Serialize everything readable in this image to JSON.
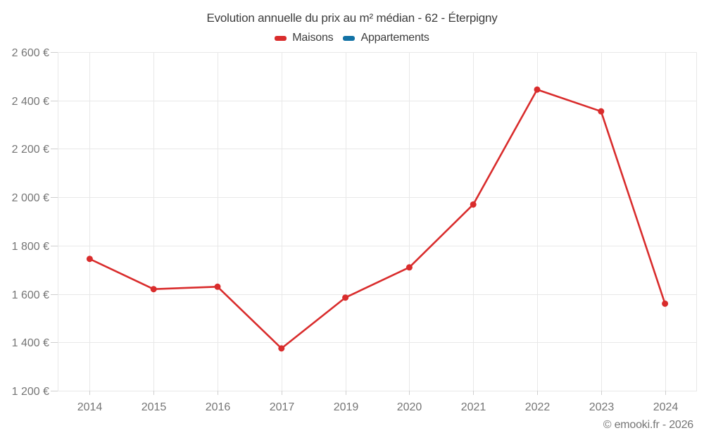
{
  "header": {
    "title": "Evolution annuelle du prix au m² médian - 62 - Éterpigny"
  },
  "legend": {
    "items": [
      {
        "label": "Maisons",
        "color": "#d92c2c"
      },
      {
        "label": "Appartements",
        "color": "#1272a5"
      }
    ]
  },
  "footer": {
    "copyright": "© emooki.fr - 2026"
  },
  "colors": {
    "maisons": "#d92c2c",
    "appartements": "#1272a5",
    "gridline": "#e8e8e8",
    "tick": "#cfcfcf",
    "axis_label": "#757575",
    "title_text": "#3d3d3d"
  },
  "chart_data": {
    "type": "line",
    "title": "Evolution annuelle du prix au m² médian - 62 - Éterpigny",
    "xlabel": "",
    "ylabel": "",
    "categories": [
      "2014",
      "2015",
      "2016",
      "2017",
      "2019",
      "2020",
      "2021",
      "2022",
      "2023",
      "2024"
    ],
    "series": [
      {
        "name": "Maisons",
        "color": "#d92c2c",
        "values": [
          1745,
          1620,
          1630,
          1375,
          1585,
          1710,
          1970,
          2445,
          2355,
          1560
        ]
      },
      {
        "name": "Appartements",
        "color": "#1272a5",
        "values": []
      }
    ],
    "ylim": [
      1200,
      2600
    ],
    "y_tick_step": 200,
    "y_tick_labels": [
      "1 200 €",
      "1 400 €",
      "1 600 €",
      "1 800 €",
      "2 000 €",
      "2 200 €",
      "2 400 €",
      "2 600 €"
    ],
    "grid": true,
    "legend_position": "top"
  }
}
